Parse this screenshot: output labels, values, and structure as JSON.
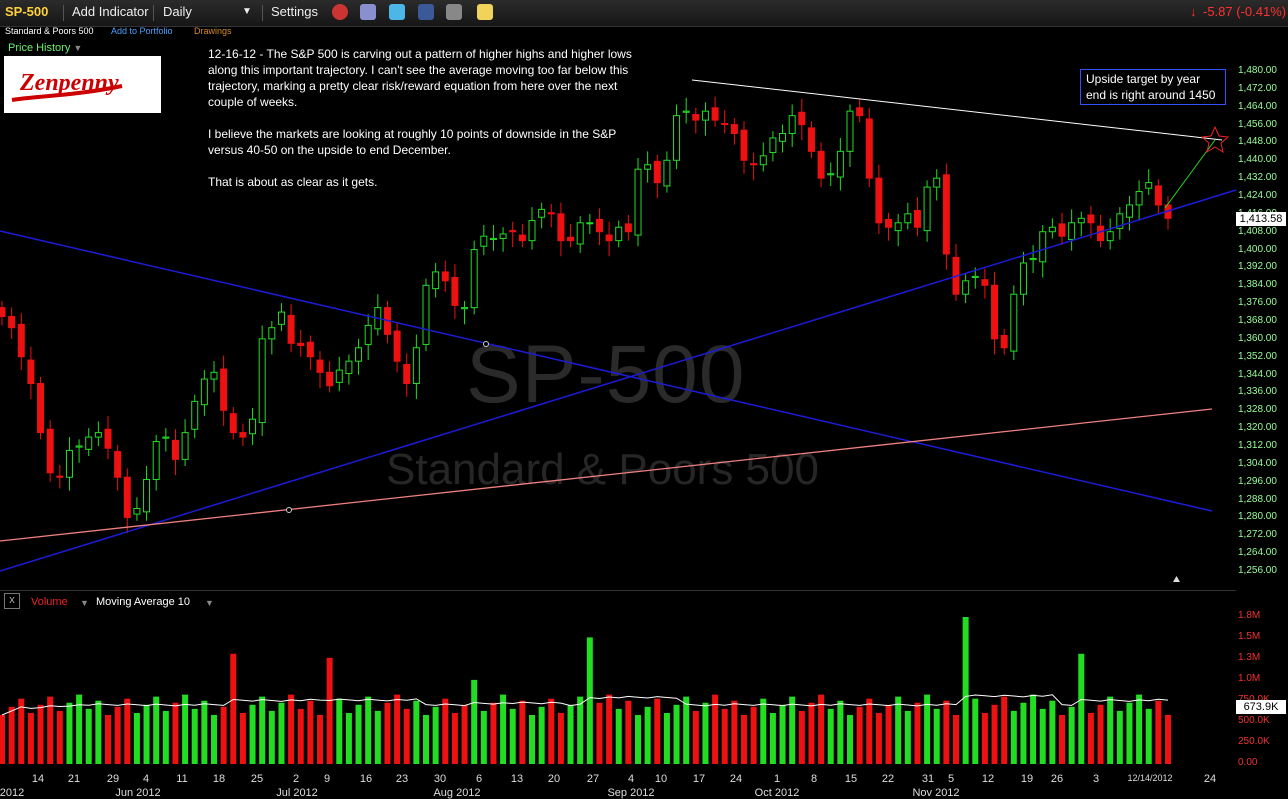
{
  "toolbar": {
    "symbol": "SP-500",
    "add_indicator": "Add Indicator",
    "interval": "Daily",
    "settings": "Settings",
    "change": "-5.87 (-0.41%)"
  },
  "subheader": {
    "name": "Standard & Poors 500",
    "add_to_portfolio": "Add to Portfolio",
    "drawings": "Drawings"
  },
  "price_history_label": "Price History",
  "logo_text": "Zenpenny",
  "annotation": {
    "p1": "12-16-12 - The S&P 500 is carving out a pattern of higher highs and higher lows along this important trajectory. I can't see the average moving too far below this trajectory, marking a pretty clear risk/reward equation from here over the next couple of weeks.",
    "p2": "I believe the markets are looking at roughly 10 points of downside in the S&P versus 40-50 on the upside to end December.",
    "p3": "That is about as clear as it gets.",
    "callout": "Upside target by year end is right around 1450"
  },
  "watermark": {
    "symbol": "SP-500",
    "name": "Standard & Poors 500"
  },
  "volume_panel": {
    "close_glyph": "x",
    "volume_label": "Volume",
    "ma_label": "Moving Average 10"
  },
  "colors": {
    "up": "#22dd22",
    "down": "#ee1111",
    "trend_blue": "#1c1cd8",
    "trend_pink": "#f08080"
  },
  "chart_data": {
    "type": "candlestick",
    "price_ylim": [
      1256,
      1480
    ],
    "price_ticks": [
      "1,480.00",
      "1,472.00",
      "1,464.00",
      "1,456.00",
      "1,448.00",
      "1,440.00",
      "1,432.00",
      "1,424.00",
      "1,416.00",
      "1,408.00",
      "1,400.00",
      "1,392.00",
      "1,384.00",
      "1,376.00",
      "1,368.00",
      "1,360.00",
      "1,352.00",
      "1,344.00",
      "1,336.00",
      "1,328.00",
      "1,320.00",
      "1,312.00",
      "1,304.00",
      "1,296.00",
      "1,288.00",
      "1,280.00",
      "1,272.00",
      "1,264.00",
      "1,256.00"
    ],
    "last_price": "1,413.58",
    "closes": [
      1370,
      1365,
      1352,
      1340,
      1318,
      1300,
      1298,
      1310,
      1312,
      1316,
      1318,
      1311,
      1298,
      1280,
      1284,
      1297,
      1314,
      1316,
      1306,
      1318,
      1332,
      1342,
      1345,
      1328,
      1318,
      1316,
      1324,
      1360,
      1365,
      1372,
      1358,
      1357,
      1352,
      1345,
      1339,
      1346,
      1350,
      1356,
      1366,
      1374,
      1362,
      1350,
      1340,
      1356,
      1384,
      1390,
      1386,
      1375,
      1374,
      1400,
      1406,
      1405,
      1407,
      1408,
      1404,
      1413,
      1418,
      1416,
      1404,
      1404,
      1412,
      1412,
      1408,
      1404,
      1410,
      1408,
      1436,
      1438,
      1430,
      1440,
      1460,
      1462,
      1458,
      1462,
      1458,
      1456,
      1452,
      1440,
      1438,
      1442,
      1450,
      1452,
      1460,
      1456,
      1444,
      1432,
      1434,
      1444,
      1462,
      1460,
      1432,
      1412,
      1410,
      1412,
      1416,
      1410,
      1428,
      1432,
      1398,
      1380,
      1386,
      1388,
      1384,
      1360,
      1356,
      1380,
      1394,
      1396,
      1408,
      1410,
      1406,
      1412,
      1414,
      1412,
      1404,
      1408,
      1416,
      1420,
      1426,
      1430,
      1420,
      1414
    ],
    "volume_ylim": [
      0,
      1800000
    ],
    "volume_ticks": [
      "1.8M",
      "1.5M",
      "1.3M",
      "1.0M",
      "750.0K",
      "500.0K",
      "250.0K",
      "0.00"
    ],
    "last_volume": "673.9K",
    "x_day_labels": [
      "14",
      "21",
      "29",
      "4",
      "11",
      "18",
      "25",
      "2",
      "9",
      "16",
      "23",
      "30",
      "6",
      "13",
      "20",
      "27",
      "4",
      "10",
      "17",
      "24",
      "1",
      "8",
      "15",
      "22",
      "31",
      "5",
      "12",
      "19",
      "26",
      "3",
      "12/14/2012",
      "24"
    ],
    "x_month_labels": [
      "2012",
      "Jun 2012",
      "Jul 2012",
      "Aug 2012",
      "Sep 2012",
      "Oct 2012",
      "Nov 2012"
    ],
    "callout_target": 1450
  }
}
